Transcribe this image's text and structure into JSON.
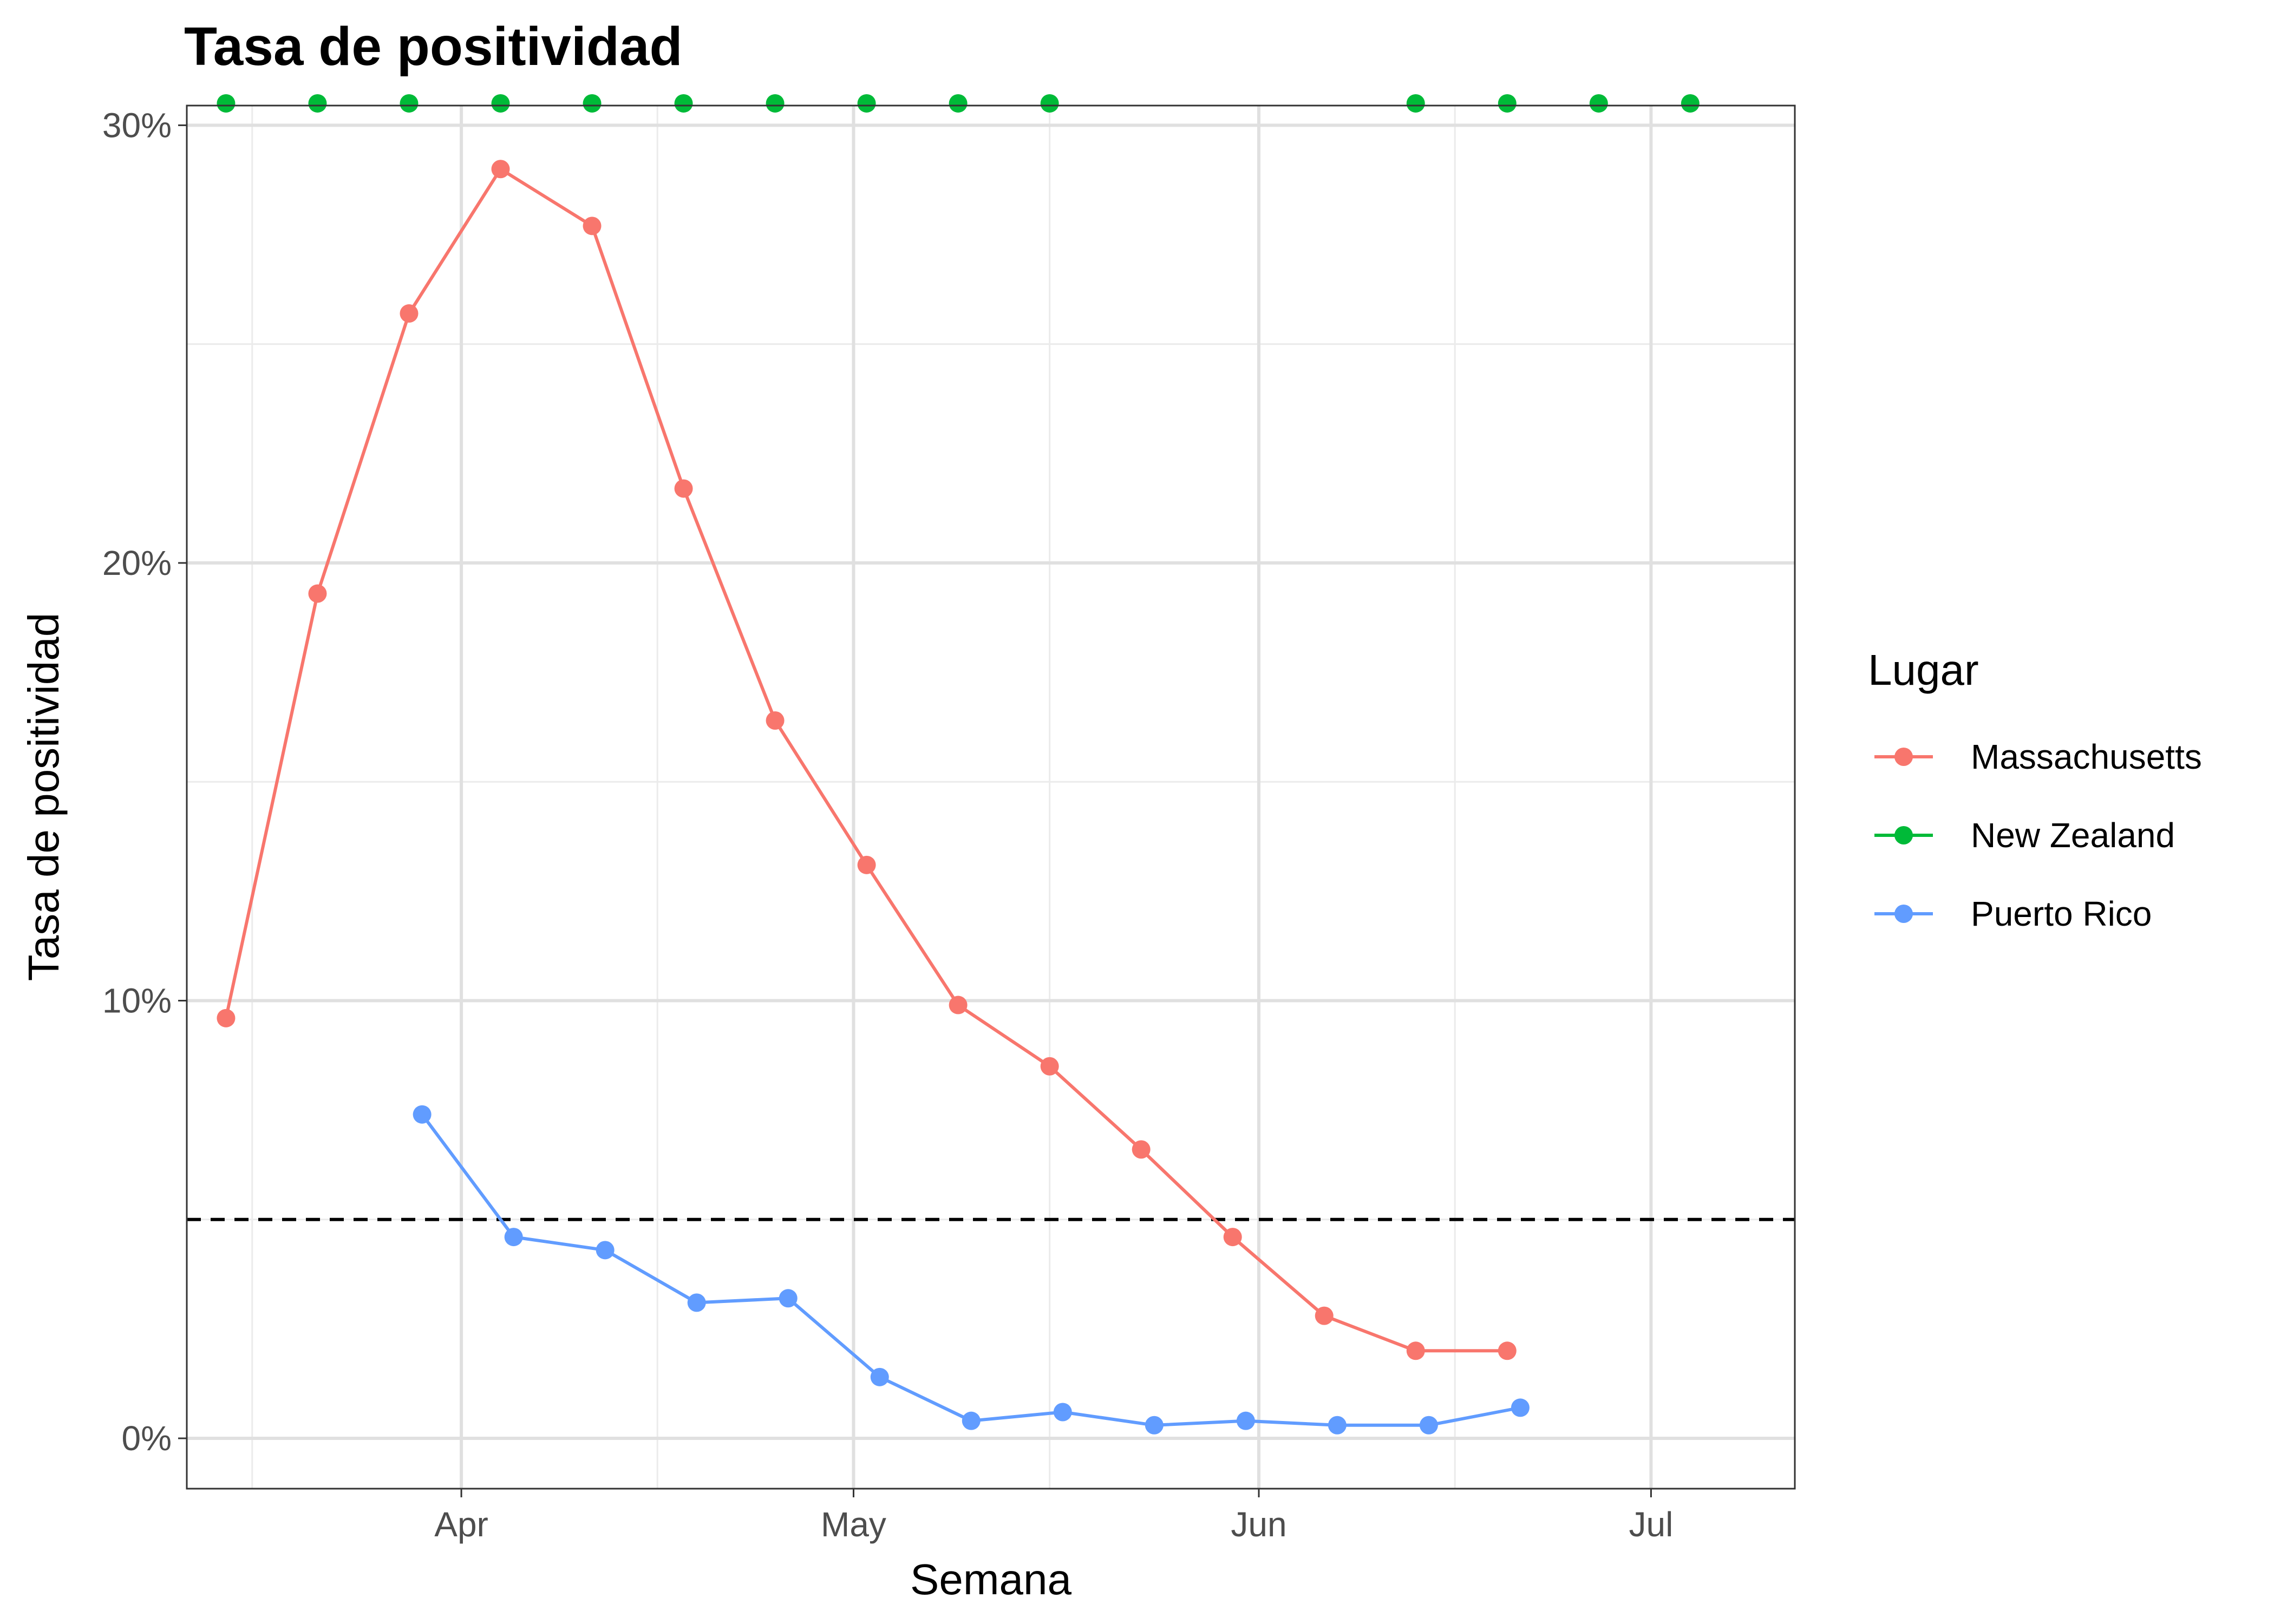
{
  "chart_data": {
    "type": "line",
    "title": "Tasa de positividad",
    "xlabel": "Semana",
    "ylabel": "Tasa de positividad",
    "x_axis": {
      "range": [
        "2020-03-11",
        "2020-07-12"
      ],
      "ticks": [
        {
          "date": "2020-04-01",
          "label": "Apr"
        },
        {
          "date": "2020-05-01",
          "label": "May"
        },
        {
          "date": "2020-06-01",
          "label": "Jun"
        },
        {
          "date": "2020-07-01",
          "label": "Jul"
        }
      ],
      "minor_ticks": [
        "2020-03-16",
        "2020-04-16",
        "2020-05-16",
        "2020-06-16"
      ]
    },
    "y_axis": {
      "range": [
        -0.0115,
        0.3045
      ],
      "ticks": [
        {
          "value": 0,
          "label": "0%"
        },
        {
          "value": 0.1,
          "label": "10%"
        },
        {
          "value": 0.2,
          "label": "20%"
        },
        {
          "value": 0.3,
          "label": "30%"
        }
      ],
      "minor_ticks": [
        0.05,
        0.15,
        0.25
      ],
      "format": "percent"
    },
    "grid": true,
    "reference_line": {
      "y": 0.05,
      "style": "dashed",
      "color": "#000000"
    },
    "legend": {
      "title": "Lugar",
      "position": "right"
    },
    "series": [
      {
        "name": "Massachusetts",
        "color": "#F8766D",
        "line": true,
        "points": [
          {
            "x": "2020-03-14",
            "y": 0.096
          },
          {
            "x": "2020-03-21",
            "y": 0.193
          },
          {
            "x": "2020-03-28",
            "y": 0.257
          },
          {
            "x": "2020-04-04",
            "y": 0.29
          },
          {
            "x": "2020-04-11",
            "y": 0.277
          },
          {
            "x": "2020-04-18",
            "y": 0.217
          },
          {
            "x": "2020-04-25",
            "y": 0.164
          },
          {
            "x": "2020-05-02",
            "y": 0.131
          },
          {
            "x": "2020-05-09",
            "y": 0.099
          },
          {
            "x": "2020-05-16",
            "y": 0.085
          },
          {
            "x": "2020-05-23",
            "y": 0.066
          },
          {
            "x": "2020-05-30",
            "y": 0.046
          },
          {
            "x": "2020-06-06",
            "y": 0.028
          },
          {
            "x": "2020-06-13",
            "y": 0.02
          },
          {
            "x": "2020-06-20",
            "y": 0.02
          }
        ]
      },
      {
        "name": "New Zealand",
        "color": "#00BA38",
        "line": false,
        "points": [
          {
            "x": "2020-03-14",
            "y": 0.305
          },
          {
            "x": "2020-03-21",
            "y": 0.305
          },
          {
            "x": "2020-03-28",
            "y": 0.305
          },
          {
            "x": "2020-04-04",
            "y": 0.305
          },
          {
            "x": "2020-04-11",
            "y": 0.305
          },
          {
            "x": "2020-04-18",
            "y": 0.305
          },
          {
            "x": "2020-04-25",
            "y": 0.305
          },
          {
            "x": "2020-05-02",
            "y": 0.305
          },
          {
            "x": "2020-05-09",
            "y": 0.305
          },
          {
            "x": "2020-05-16",
            "y": 0.305
          },
          {
            "x": "2020-06-13",
            "y": 0.305
          },
          {
            "x": "2020-06-20",
            "y": 0.305
          },
          {
            "x": "2020-06-27",
            "y": 0.305
          },
          {
            "x": "2020-07-04",
            "y": 0.305
          }
        ]
      },
      {
        "name": "Puerto Rico",
        "color": "#619CFF",
        "line": true,
        "points": [
          {
            "x": "2020-03-29",
            "y": 0.074
          },
          {
            "x": "2020-04-05",
            "y": 0.046
          },
          {
            "x": "2020-04-12",
            "y": 0.043
          },
          {
            "x": "2020-04-19",
            "y": 0.031
          },
          {
            "x": "2020-04-26",
            "y": 0.032
          },
          {
            "x": "2020-05-03",
            "y": 0.014
          },
          {
            "x": "2020-05-10",
            "y": 0.004
          },
          {
            "x": "2020-05-17",
            "y": 0.006
          },
          {
            "x": "2020-05-24",
            "y": 0.003
          },
          {
            "x": "2020-05-31",
            "y": 0.004
          },
          {
            "x": "2020-06-07",
            "y": 0.003
          },
          {
            "x": "2020-06-14",
            "y": 0.003
          },
          {
            "x": "2020-06-21",
            "y": 0.007
          }
        ]
      }
    ]
  }
}
